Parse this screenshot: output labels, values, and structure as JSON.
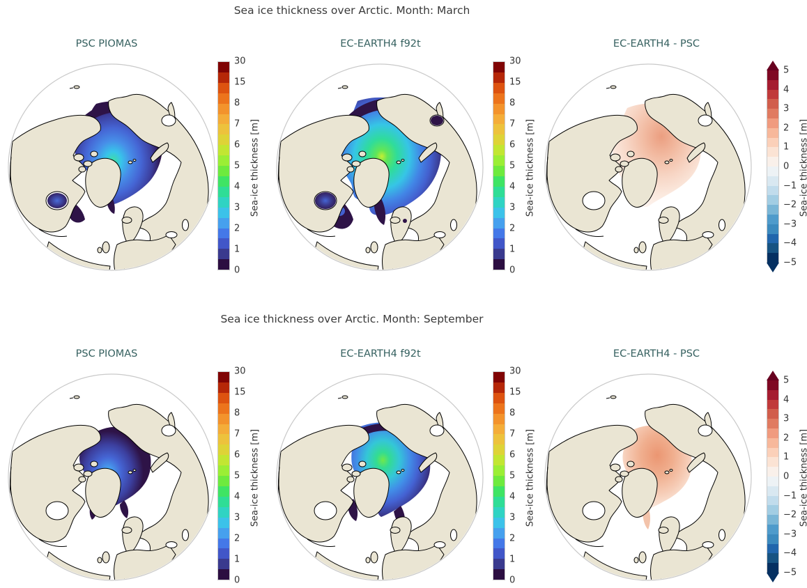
{
  "figure": {
    "background": "#ffffff"
  },
  "colors": {
    "row_title": "#3a3a3a",
    "panel_title": "#35605f",
    "tick_label": "#333333",
    "ice_dark": "#2e1347",
    "ice_mid": "#4360cf",
    "diff_mid": "#f3c3aa",
    "diff_blue_patch": "#dde7ee",
    "diff_red_dot": "#c84a3c",
    "colorbar_border": "#c9c9c9"
  },
  "map": {
    "land_color": "#eae5d3",
    "ocean_color": "#ffffff",
    "coast_color": "#000000",
    "globe_edge_color": "#c9c9c9"
  },
  "rows": [
    {
      "title": "Sea ice thickness over Arctic. Month: March",
      "panels": [
        {
          "title": "PSC PIOMAS"
        },
        {
          "title": "EC-EARTH4 f92t"
        },
        {
          "title": "EC-EARTH4 -  PSC"
        }
      ]
    },
    {
      "title": "Sea ice thickness over Arctic. Month: September",
      "panels": [
        {
          "title": "PSC PIOMAS"
        },
        {
          "title": "EC-EARTH4 f92t"
        },
        {
          "title": "EC-EARTH4 -  PSC"
        }
      ]
    }
  ],
  "colorbars": {
    "thickness": {
      "label": "Sea-ice thickness [m]",
      "ticks_top_to_bottom": [
        "30",
        "15",
        "8",
        "7",
        "6",
        "5",
        "4",
        "3",
        "2",
        "1",
        "0"
      ],
      "colors_bottom_to_top": [
        "#2c0e41",
        "#3a3a8e",
        "#4156c8",
        "#4478e8",
        "#46a0ee",
        "#3cc2e9",
        "#30d3c3",
        "#2fdd96",
        "#3fe464",
        "#6eea3e",
        "#9bee35",
        "#c2e632",
        "#ded337",
        "#edc23c",
        "#f4ad39",
        "#f3932c",
        "#ec741c",
        "#dd5310",
        "#b52708",
        "#800404"
      ]
    },
    "difference": {
      "label": "Sea-ice thickness [m]",
      "ticks_top_to_bottom": [
        "5",
        "4",
        "3",
        "2",
        "1",
        "0",
        "−1",
        "−2",
        "−3",
        "−4",
        "−5"
      ],
      "colors_bottom_to_top": [
        "#053061",
        "#175382",
        "#2166ac",
        "#3c8abe",
        "#4f9bcb",
        "#7ab6d6",
        "#a2cde3",
        "#c1dcec",
        "#d9e8f1",
        "#edf2f5",
        "#f9f0ea",
        "#fbe3d4",
        "#fbd0b9",
        "#f7b89b",
        "#f09b7f",
        "#e07b61",
        "#d15e4c",
        "#c03a3a",
        "#a51c30",
        "#7f0823"
      ],
      "arrow_top_color": "#67001f",
      "arrow_bottom_color": "#053061"
    }
  },
  "ice_gradients": {
    "march_piomas": [
      {
        "o": "0%",
        "c": "#3fe0a0"
      },
      {
        "o": "15%",
        "c": "#38c4ea"
      },
      {
        "o": "32%",
        "c": "#478ee8"
      },
      {
        "o": "52%",
        "c": "#4565d4"
      },
      {
        "o": "72%",
        "c": "#3c3f9e"
      },
      {
        "o": "88%",
        "c": "#2e1347"
      },
      {
        "o": "100%",
        "c": "#2e1347"
      }
    ],
    "march_piomas_hudson": [
      {
        "o": "0%",
        "c": "#4a6cd8"
      },
      {
        "o": "55%",
        "c": "#3a3a8e"
      },
      {
        "o": "100%",
        "c": "#2e1347"
      }
    ],
    "march_ecearth": [
      {
        "o": "0%",
        "c": "#c6ee33"
      },
      {
        "o": "8%",
        "c": "#62e656"
      },
      {
        "o": "22%",
        "c": "#2fdc9b"
      },
      {
        "o": "40%",
        "c": "#36c5e6"
      },
      {
        "o": "56%",
        "c": "#4286e6"
      },
      {
        "o": "70%",
        "c": "#4360cf"
      },
      {
        "o": "84%",
        "c": "#3a3a8e"
      },
      {
        "o": "95%",
        "c": "#2e1347"
      },
      {
        "o": "100%",
        "c": "#2e1347"
      }
    ],
    "march_ecearth_hudson": [
      {
        "o": "0%",
        "c": "#4565d4"
      },
      {
        "o": "45%",
        "c": "#3a3a8e"
      },
      {
        "o": "100%",
        "c": "#2e1347"
      }
    ],
    "march_diff": [
      {
        "o": "0%",
        "c": "#eb9e80"
      },
      {
        "o": "28%",
        "c": "#f2bba2"
      },
      {
        "o": "55%",
        "c": "#f7d5c4"
      },
      {
        "o": "80%",
        "c": "#fbe9de"
      },
      {
        "o": "100%",
        "c": "#fdf3ee"
      }
    ],
    "sept_piomas": [
      {
        "o": "0%",
        "c": "#38c8ec"
      },
      {
        "o": "12%",
        "c": "#4796ec"
      },
      {
        "o": "30%",
        "c": "#4565d4"
      },
      {
        "o": "55%",
        "c": "#3c3f9e"
      },
      {
        "o": "80%",
        "c": "#2e1347"
      },
      {
        "o": "100%",
        "c": "#2e1347"
      }
    ],
    "sept_ecearth": [
      {
        "o": "0%",
        "c": "#6fe84c"
      },
      {
        "o": "12%",
        "c": "#33dc92"
      },
      {
        "o": "30%",
        "c": "#34c6d8"
      },
      {
        "o": "48%",
        "c": "#418fe8"
      },
      {
        "o": "65%",
        "c": "#4462d2"
      },
      {
        "o": "82%",
        "c": "#3a3a90"
      },
      {
        "o": "95%",
        "c": "#2e1347"
      },
      {
        "o": "100%",
        "c": "#2e1347"
      }
    ],
    "sept_diff": [
      {
        "o": "0%",
        "c": "#eb9672"
      },
      {
        "o": "35%",
        "c": "#f0af8f"
      },
      {
        "o": "65%",
        "c": "#f6ccb6"
      },
      {
        "o": "88%",
        "c": "#fae6d9"
      },
      {
        "o": "100%",
        "c": "#fcf0e8"
      }
    ]
  },
  "chart_data": [
    {
      "type": "heatmap",
      "title": "Sea ice thickness over Arctic. Month: March",
      "projection": "orthographic north-polar globes",
      "panels": [
        {
          "title": "PSC PIOMAS",
          "colorbar_label": "Sea-ice thickness [m]",
          "colorbar_ticks": [
            0,
            1,
            2,
            3,
            4,
            5,
            6,
            7,
            8,
            15,
            30
          ],
          "values": "Central Arctic pack 2-4 m (blue-cyan), local max ~4-5 m (teal-green) north of Greenland; <1 m (dark purple) margins in Bering Sea, Hudson Bay, Labrador and Barents Seas"
        },
        {
          "title": "EC-EARTH4 f92t",
          "colorbar_label": "Sea-ice thickness [m]",
          "colorbar_ticks": [
            0,
            1,
            2,
            3,
            4,
            5,
            6,
            7,
            8,
            15,
            30
          ],
          "values": "Thicker, more extensive pack: 4-5 m (green) over central Arctic with ~6 m (yellow-green) spot near north Greenland; <1 m (dark purple) margins extend into Bering Sea, Sea of Okhotsk, Hudson Bay and Baltic"
        },
        {
          "title": "EC-EARTH4 -  PSC",
          "colorbar_label": "Sea-ice thickness [m]",
          "colorbar_ticks": [
            -5,
            -4,
            -3,
            -2,
            -1,
            0,
            1,
            2,
            3,
            4,
            5
          ],
          "values": "Mostly +0.5 to +1.5 m (pale red) over central Arctic, strongest near the pole; small ~-0.5 m (pale blue) patch near Canadian Archipelago/Hudson Bay"
        }
      ]
    },
    {
      "type": "heatmap",
      "title": "Sea ice thickness over Arctic. Month: September",
      "projection": "orthographic north-polar globes",
      "panels": [
        {
          "title": "PSC PIOMAS",
          "colorbar_label": "Sea-ice thickness [m]",
          "colorbar_ticks": [
            0,
            1,
            2,
            3,
            4,
            5,
            6,
            7,
            8,
            15,
            30
          ],
          "values": "Small pack near Greenland/Canadian Archipelago: core ~2-3 m (blue, small cyan spot), surrounded by <1 m (dark purple)"
        },
        {
          "title": "EC-EARTH4 f92t",
          "colorbar_label": "Sea-ice thickness [m]",
          "colorbar_ticks": [
            0,
            1,
            2,
            3,
            4,
            5,
            6,
            7,
            8,
            15,
            30
          ],
          "values": "Larger pack: ~3-4 m (teal-green) core over central Arctic, 1-2 m (blue) ring, <1 m (dark purple) fringe toward Siberian coast"
        },
        {
          "title": "EC-EARTH4 -  PSC",
          "colorbar_label": "Sea-ice thickness [m]",
          "colorbar_ticks": [
            -5,
            -4,
            -3,
            -2,
            -1,
            0,
            1,
            2,
            3,
            4,
            5
          ],
          "values": "+1 to +2 m (salmon red) over central Arctic basin"
        }
      ]
    }
  ]
}
